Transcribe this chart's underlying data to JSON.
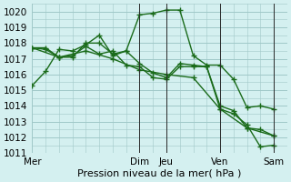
{
  "xlabel": "Pression niveau de la mer( hPa )",
  "ylabel": "",
  "ylim": [
    1011,
    1020.5
  ],
  "yticks": [
    1011,
    1012,
    1013,
    1014,
    1015,
    1016,
    1017,
    1018,
    1019,
    1020
  ],
  "background_color": "#d4f0f0",
  "grid_color": "#a0c8c8",
  "line_color": "#1a6b1a",
  "marker_color": "#1a6b1a",
  "x_day_labels": [
    "Mer",
    "Dim",
    "Jeu",
    "Ven",
    "Sam"
  ],
  "x_day_positions": [
    0,
    4,
    5,
    7,
    9
  ],
  "series": [
    {
      "x": [
        0,
        0.5,
        1,
        1.5,
        2,
        2.5,
        3,
        3.5,
        4,
        4.5,
        5,
        5.5,
        6,
        6.5,
        7,
        7.5,
        8,
        8.5,
        9
      ],
      "y": [
        1015.3,
        1016.2,
        1017.6,
        1017.5,
        1017.9,
        1018.5,
        1017.2,
        1017.5,
        1019.8,
        1019.9,
        1020.1,
        1020.1,
        1017.2,
        1016.6,
        1016.6,
        1015.7,
        1013.9,
        1014.0,
        1013.8
      ]
    },
    {
      "x": [
        0,
        0.5,
        1,
        1.5,
        2,
        2.5,
        3,
        3.5,
        4,
        4.5,
        5,
        5.5,
        6,
        6.5,
        7,
        7.5,
        8,
        8.5,
        9
      ],
      "y": [
        1017.7,
        1017.7,
        1017.1,
        1017.2,
        1017.8,
        1017.3,
        1017.5,
        1016.6,
        1016.5,
        1015.8,
        1015.7,
        1016.5,
        1016.5,
        1016.5,
        1014.0,
        1013.7,
        1012.6,
        1012.5,
        1012.1
      ]
    },
    {
      "x": [
        0,
        0.5,
        1,
        1.5,
        2,
        2.5,
        3,
        3.5,
        4,
        4.5,
        5,
        5.5,
        6,
        6.5,
        7,
        7.5,
        8,
        8.5,
        9
      ],
      "y": [
        1017.7,
        1017.6,
        1017.1,
        1017.1,
        1018.0,
        1018.0,
        1017.3,
        1017.5,
        1016.7,
        1016.1,
        1015.8,
        1016.7,
        1016.6,
        1016.5,
        1013.8,
        1013.5,
        1012.8,
        1011.4,
        1011.5
      ]
    },
    {
      "x": [
        0,
        1,
        2,
        3,
        4,
        5,
        6,
        7,
        8,
        9
      ],
      "y": [
        1017.7,
        1017.1,
        1017.5,
        1017.0,
        1016.3,
        1016.0,
        1015.8,
        1013.8,
        1012.6,
        1012.1
      ]
    }
  ]
}
